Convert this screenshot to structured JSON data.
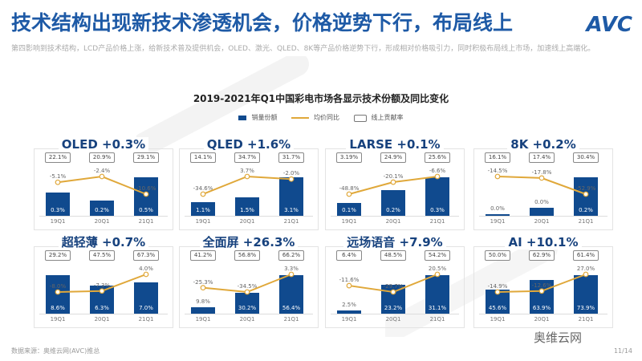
{
  "header": {
    "title": "技术结构出现新技术渗透机会，价格逆势下行，布局线上",
    "logo": "AVC",
    "subtitle": "第四影响到技术结构，LCD产品价格上涨，给新技术普及提供机会，OLED、激光、QLED、8K等产品价格逆势下行，形成相对价格吸引力，同时积极布局线上市场，加速线上高端化。"
  },
  "chart_title": "2019-2021年Q1中国彩电市场各显示技术份额及同比变化",
  "legend": {
    "bar": "销量份额",
    "line": "均价同比",
    "box": "线上贡献率"
  },
  "colors": {
    "bar": "#104a8e",
    "line": "#e0a83a",
    "title": "#1e5aa6"
  },
  "watermark": "奥维云网 ALL VIEW CLOUD",
  "footer": {
    "source": "数据来源：奥维云网(AVC)推总",
    "page": "11/14",
    "wechat": "奥维云网"
  },
  "chart_data": [
    {
      "type": "bar+line",
      "title": "OLED +0.3%",
      "categories": [
        "19Q1",
        "20Q1",
        "21Q1"
      ],
      "share": [
        "0.3%",
        "0.2%",
        "0.5%"
      ],
      "share_v": [
        0.3,
        0.2,
        0.5
      ],
      "price_yoy": [
        "-5.1%",
        "-2.4%",
        "-10.6%"
      ],
      "price_yoy_v": [
        -5.1,
        -2.4,
        -10.6
      ],
      "online": [
        "22.1%",
        "20.9%",
        "29.1%"
      ]
    },
    {
      "type": "bar+line",
      "title": "QLED +1.6%",
      "categories": [
        "19Q1",
        "20Q1",
        "21Q1"
      ],
      "share": [
        "1.1%",
        "1.5%",
        "3.1%"
      ],
      "share_v": [
        1.1,
        1.5,
        3.1
      ],
      "price_yoy": [
        "-34.6%",
        "3.7%",
        "-2.0%"
      ],
      "price_yoy_v": [
        -34.6,
        3.7,
        -2.0
      ],
      "online": [
        "14.1%",
        "34.7%",
        "31.7%"
      ]
    },
    {
      "type": "bar+line",
      "title": "LARSE +0.1%",
      "categories": [
        "19Q1",
        "20Q1",
        "21Q1"
      ],
      "share": [
        "0.1%",
        "0.2%",
        "0.3%"
      ],
      "share_v": [
        0.1,
        0.2,
        0.3
      ],
      "price_yoy": [
        "-48.8%",
        "-20.1%",
        "-6.6%"
      ],
      "price_yoy_v": [
        -48.8,
        -20.1,
        -6.6
      ],
      "online": [
        "3.19%",
        "24.9%",
        "25.6%"
      ]
    },
    {
      "type": "bar+line",
      "title": "8K +0.2%",
      "categories": [
        "19Q1",
        "20Q1",
        "21Q1"
      ],
      "share": [
        "0.0%",
        "0.0%",
        "0.2%"
      ],
      "share_v": [
        0.01,
        0.04,
        0.2
      ],
      "price_yoy": [
        "-14.5%",
        "-17.8%",
        "-52.9%"
      ],
      "price_yoy_v": [
        -14.5,
        -17.8,
        -52.9
      ],
      "online": [
        "16.1%",
        "17.4%",
        "30.4%"
      ]
    },
    {
      "type": "bar+line",
      "title": "超轻薄 +0.7%",
      "categories": [
        "19Q1",
        "20Q1",
        "21Q1"
      ],
      "share": [
        "8.6%",
        "6.3%",
        "7.0%"
      ],
      "share_v": [
        8.6,
        6.3,
        7.0
      ],
      "price_yoy": [
        "-8.0%",
        "-7.3%",
        "4.0%"
      ],
      "price_yoy_v": [
        -8.0,
        -7.3,
        4.0
      ],
      "online": [
        "29.2%",
        "47.5%",
        "67.3%"
      ]
    },
    {
      "type": "bar+line",
      "title": "全面屏 +26.3%",
      "categories": [
        "19Q1",
        "20Q1",
        "21Q1"
      ],
      "share": [
        "9.8%",
        "30.2%",
        "56.4%"
      ],
      "share_v": [
        9.8,
        30.2,
        56.4
      ],
      "price_yoy": [
        "-25.3%",
        "-34.5%",
        "3.3%"
      ],
      "price_yoy_v": [
        -25.3,
        -34.5,
        3.3
      ],
      "online": [
        "41.2%",
        "56.8%",
        "66.2%"
      ]
    },
    {
      "type": "bar+line",
      "title": "远场语音 +7.9%",
      "categories": [
        "19Q1",
        "20Q1",
        "21Q1"
      ],
      "share": [
        "2.5%",
        "23.2%",
        "31.1%"
      ],
      "share_v": [
        2.5,
        23.2,
        31.1
      ],
      "price_yoy": [
        "-11.6%",
        "-29.7%",
        "20.5%"
      ],
      "price_yoy_v": [
        -11.6,
        -29.7,
        20.5
      ],
      "online": [
        "6.4%",
        "48.5%",
        "54.2%"
      ]
    },
    {
      "type": "bar+line",
      "title": "AI +10.1%",
      "categories": [
        "19Q1",
        "20Q1",
        "21Q1"
      ],
      "share": [
        "45.6%",
        "63.9%",
        "73.9%"
      ],
      "share_v": [
        45.6,
        63.9,
        73.9
      ],
      "price_yoy": [
        "-14.9%",
        "-12.6%",
        "27.0%"
      ],
      "price_yoy_v": [
        -14.9,
        -12.6,
        27.0
      ],
      "online": [
        "50.0%",
        "62.9%",
        "61.4%"
      ]
    }
  ]
}
